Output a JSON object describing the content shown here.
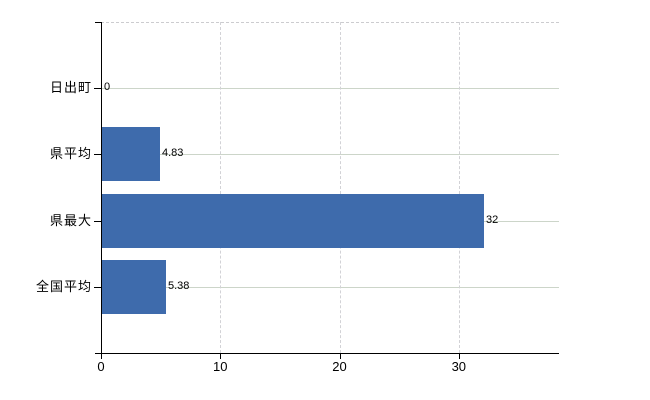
{
  "chart_data": {
    "type": "bar",
    "orientation": "horizontal",
    "title": "",
    "xlabel": "",
    "ylabel": "",
    "categories": [
      "日出町",
      "県平均",
      "県最大",
      "全国平均"
    ],
    "values": [
      0,
      4.83,
      32,
      5.38
    ],
    "value_labels": [
      "0",
      "4.83",
      "32",
      "5.38"
    ],
    "x_ticks": [
      0,
      10,
      20,
      30
    ],
    "x_tick_labels": [
      "0",
      "10",
      "20",
      "30"
    ],
    "xlim": [
      0,
      38.4
    ],
    "grid": true,
    "legend": false,
    "colors": {
      "bar": "#3e6bac",
      "axis": "#000000",
      "h_gridline": "#ccd5c9",
      "v_gridline": "#d2d2d6",
      "top_border": "#cccccf",
      "text": "#000000",
      "background": "#ffffff"
    }
  }
}
